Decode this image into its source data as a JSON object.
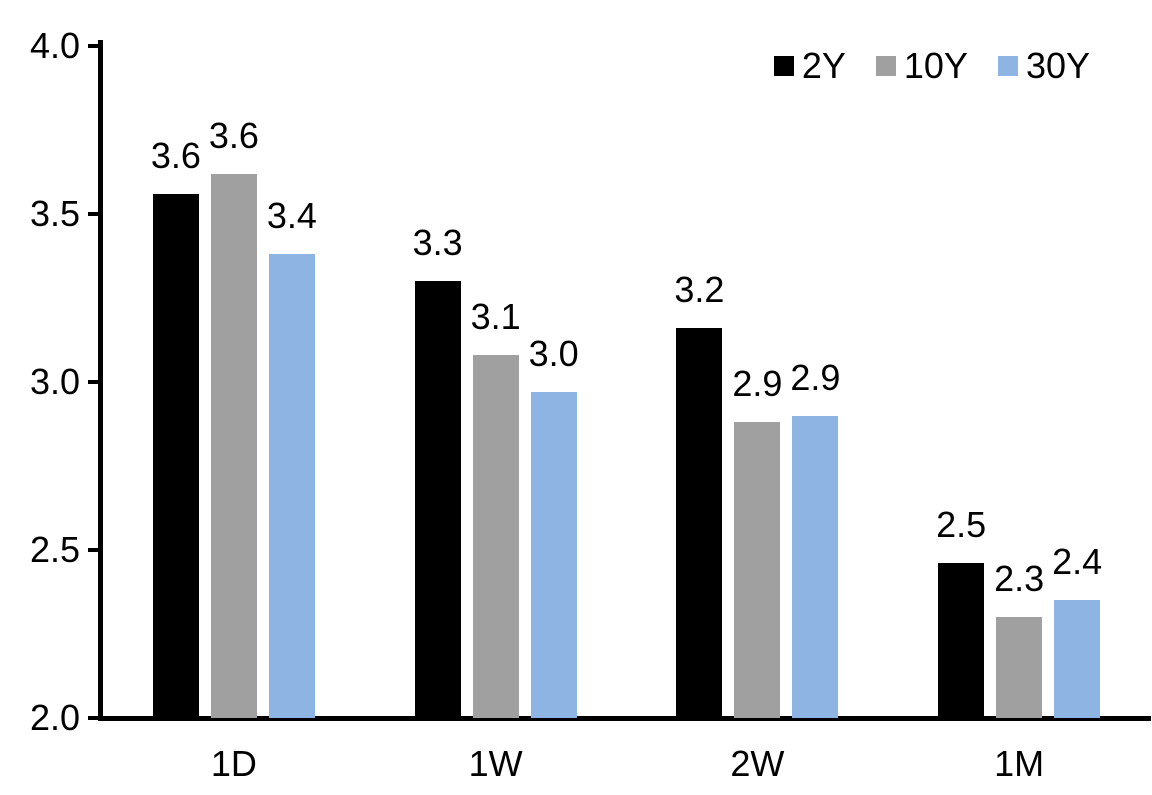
{
  "chart_data": {
    "type": "bar",
    "title": "",
    "xlabel": "",
    "ylabel": "",
    "categories": [
      "1D",
      "1W",
      "2W",
      "1M"
    ],
    "series": [
      {
        "name": "2Y",
        "color": "#000000",
        "values": [
          3.56,
          3.3,
          3.16,
          2.46
        ],
        "labels": [
          "3.6",
          "3.3",
          "3.2",
          "2.5"
        ]
      },
      {
        "name": "10Y",
        "color": "#A0A0A0",
        "values": [
          3.62,
          3.08,
          2.88,
          2.3
        ],
        "labels": [
          "3.6",
          "3.1",
          "2.9",
          "2.3"
        ]
      },
      {
        "name": "30Y",
        "color": "#8EB4E3",
        "values": [
          3.38,
          2.97,
          2.9,
          2.35
        ],
        "labels": [
          "3.4",
          "3.0",
          "2.9",
          "2.4"
        ]
      }
    ],
    "ylim": [
      2.0,
      4.0
    ],
    "yticks": [
      {
        "value": 4.0,
        "label": "4.0"
      },
      {
        "value": 3.5,
        "label": "3.5"
      },
      {
        "value": 3.0,
        "label": "3.0"
      },
      {
        "value": 2.5,
        "label": "2.5"
      },
      {
        "value": 2.0,
        "label": "2.0"
      }
    ],
    "grid": false,
    "legend_position": "top-right",
    "colors": {
      "axis": "#000000",
      "background": "#FFFFFF",
      "text": "#000000"
    }
  }
}
